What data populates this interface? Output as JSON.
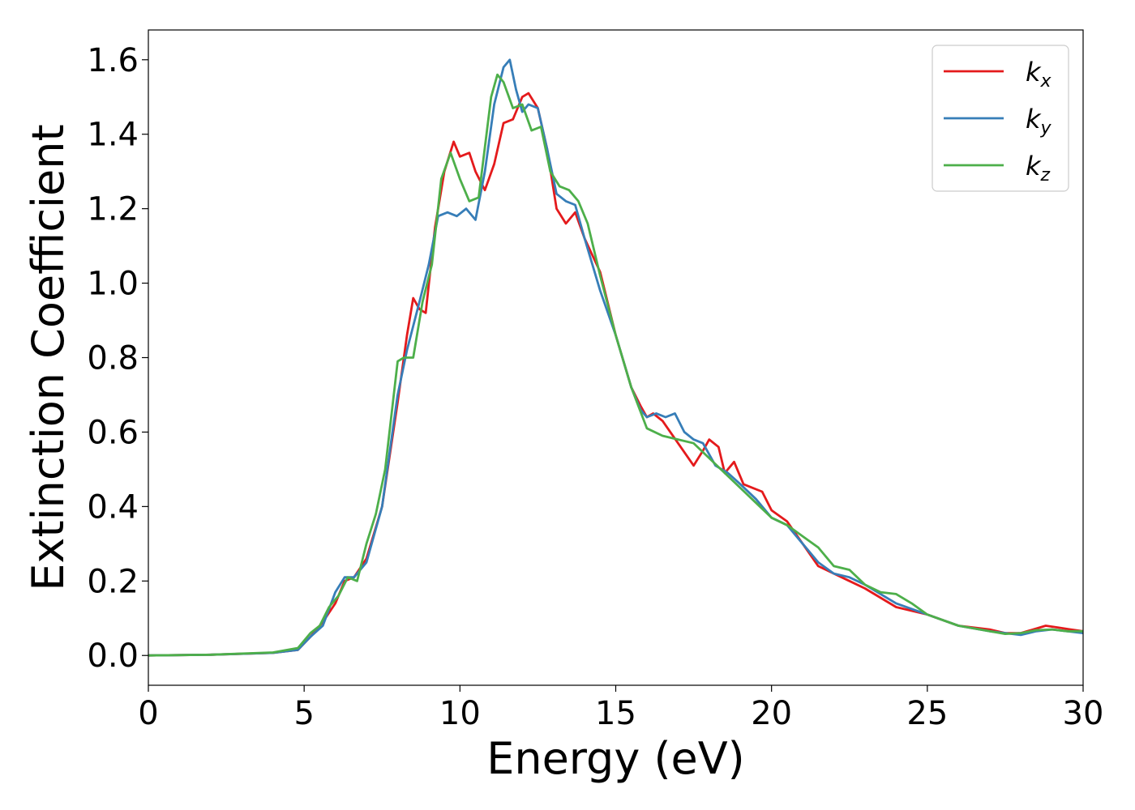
{
  "chart_data": {
    "type": "line",
    "title": "",
    "xlabel": "Energy (eV)",
    "ylabel": "Extinction Coefficient",
    "xlim": [
      0,
      30
    ],
    "ylim": [
      -0.08,
      1.68
    ],
    "xticks": [
      0,
      5,
      10,
      15,
      20,
      25,
      30
    ],
    "xtick_labels": [
      "0",
      "5",
      "10",
      "15",
      "20",
      "25",
      "30"
    ],
    "yticks": [
      0.0,
      0.2,
      0.4,
      0.6,
      0.8,
      1.0,
      1.2,
      1.4,
      1.6
    ],
    "ytick_labels": [
      "0.0",
      "0.2",
      "0.4",
      "0.6",
      "0.8",
      "1.0",
      "1.2",
      "1.4",
      "1.6"
    ],
    "grid": false,
    "legend_position": "top-right",
    "series": [
      {
        "name": "k_x",
        "label_base": "k",
        "label_sub": "x",
        "color": "#e41a1c",
        "x": [
          0,
          2,
          4,
          4.8,
          5.2,
          5.6,
          6.0,
          6.3,
          6.6,
          7.0,
          7.5,
          8.0,
          8.3,
          8.5,
          8.7,
          8.9,
          9.2,
          9.5,
          9.8,
          10.0,
          10.3,
          10.5,
          10.8,
          11.1,
          11.4,
          11.7,
          12.0,
          12.2,
          12.5,
          12.8,
          13.1,
          13.4,
          13.7,
          14.0,
          14.5,
          15.0,
          15.5,
          15.8,
          16.0,
          16.2,
          16.5,
          17.0,
          17.5,
          17.8,
          18.0,
          18.3,
          18.5,
          18.8,
          19.1,
          19.4,
          19.7,
          20.0,
          20.5,
          21.0,
          21.5,
          22.0,
          22.5,
          23.0,
          24.0,
          25.0,
          26.0,
          27.0,
          27.5,
          28.0,
          28.4,
          28.8,
          29.2,
          29.6,
          30.0
        ],
        "y": [
          0.0,
          0.002,
          0.007,
          0.015,
          0.05,
          0.09,
          0.14,
          0.2,
          0.21,
          0.26,
          0.4,
          0.68,
          0.86,
          0.96,
          0.93,
          0.92,
          1.15,
          1.3,
          1.38,
          1.34,
          1.35,
          1.3,
          1.25,
          1.32,
          1.43,
          1.44,
          1.5,
          1.51,
          1.47,
          1.36,
          1.2,
          1.16,
          1.19,
          1.12,
          1.03,
          0.86,
          0.72,
          0.67,
          0.64,
          0.65,
          0.63,
          0.57,
          0.51,
          0.55,
          0.58,
          0.56,
          0.49,
          0.52,
          0.46,
          0.45,
          0.44,
          0.39,
          0.36,
          0.3,
          0.24,
          0.22,
          0.2,
          0.18,
          0.13,
          0.11,
          0.08,
          0.07,
          0.06,
          0.06,
          0.07,
          0.08,
          0.075,
          0.07,
          0.065
        ]
      },
      {
        "name": "k_y",
        "label_base": "k",
        "label_sub": "y",
        "color": "#377eb8",
        "x": [
          0,
          2,
          4,
          4.8,
          5.2,
          5.6,
          6.0,
          6.3,
          6.6,
          7.0,
          7.5,
          8.0,
          8.3,
          8.7,
          9.0,
          9.3,
          9.6,
          9.9,
          10.2,
          10.5,
          10.8,
          11.1,
          11.4,
          11.6,
          11.8,
          12.0,
          12.2,
          12.5,
          12.8,
          13.1,
          13.4,
          13.7,
          14.0,
          14.5,
          15.0,
          15.5,
          15.8,
          16.0,
          16.3,
          16.6,
          16.9,
          17.2,
          17.5,
          17.8,
          18.2,
          18.6,
          19.0,
          19.5,
          20.0,
          20.5,
          21.0,
          21.5,
          22.0,
          22.5,
          23.0,
          24.0,
          25.0,
          26.0,
          27.0,
          27.5,
          28.0,
          28.5,
          29.0,
          29.5,
          30.0
        ],
        "y": [
          0.0,
          0.002,
          0.007,
          0.015,
          0.05,
          0.08,
          0.17,
          0.21,
          0.21,
          0.25,
          0.4,
          0.7,
          0.82,
          0.95,
          1.05,
          1.18,
          1.19,
          1.18,
          1.2,
          1.17,
          1.3,
          1.48,
          1.58,
          1.6,
          1.52,
          1.46,
          1.48,
          1.47,
          1.36,
          1.24,
          1.22,
          1.21,
          1.12,
          0.98,
          0.86,
          0.72,
          0.66,
          0.64,
          0.65,
          0.64,
          0.65,
          0.6,
          0.58,
          0.57,
          0.51,
          0.49,
          0.46,
          0.42,
          0.37,
          0.35,
          0.3,
          0.25,
          0.22,
          0.21,
          0.19,
          0.14,
          0.11,
          0.08,
          0.065,
          0.06,
          0.055,
          0.065,
          0.07,
          0.065,
          0.06
        ]
      },
      {
        "name": "k_z",
        "label_base": "k",
        "label_sub": "z",
        "color": "#4daf4a",
        "x": [
          0,
          2,
          4,
          4.8,
          5.2,
          5.5,
          5.8,
          6.1,
          6.4,
          6.7,
          7.0,
          7.3,
          7.6,
          8.0,
          8.2,
          8.5,
          8.8,
          9.1,
          9.4,
          9.7,
          10.0,
          10.3,
          10.6,
          11.0,
          11.2,
          11.4,
          11.7,
          12.0,
          12.3,
          12.6,
          12.9,
          13.2,
          13.5,
          13.8,
          14.1,
          14.5,
          15.0,
          15.5,
          16.0,
          16.5,
          17.0,
          17.5,
          18.0,
          18.5,
          19.0,
          19.5,
          20.0,
          20.5,
          21.0,
          21.5,
          22.0,
          22.5,
          23.0,
          23.5,
          24.0,
          24.5,
          25.0,
          26.0,
          27.0,
          27.5,
          28.0,
          28.5,
          29.0,
          29.5,
          30.0
        ],
        "y": [
          0.0,
          0.002,
          0.008,
          0.02,
          0.06,
          0.08,
          0.13,
          0.16,
          0.21,
          0.2,
          0.3,
          0.38,
          0.5,
          0.79,
          0.8,
          0.8,
          0.95,
          1.05,
          1.28,
          1.35,
          1.28,
          1.22,
          1.23,
          1.5,
          1.56,
          1.54,
          1.47,
          1.48,
          1.41,
          1.42,
          1.3,
          1.26,
          1.25,
          1.22,
          1.16,
          1.02,
          0.86,
          0.72,
          0.61,
          0.59,
          0.58,
          0.57,
          0.53,
          0.49,
          0.45,
          0.41,
          0.37,
          0.35,
          0.32,
          0.29,
          0.24,
          0.23,
          0.19,
          0.17,
          0.165,
          0.14,
          0.11,
          0.08,
          0.065,
          0.058,
          0.06,
          0.068,
          0.07,
          0.065,
          0.065
        ]
      }
    ]
  }
}
